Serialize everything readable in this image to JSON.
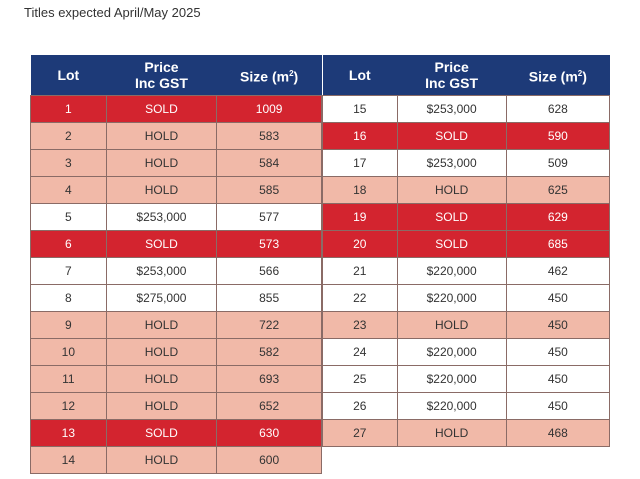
{
  "subtitle": "Titles expected April/May 2025",
  "headers": {
    "lot": "Lot",
    "price_line1": "Price",
    "price_line2": "Inc GST",
    "size": "Size (m",
    "size_sup": "2",
    "size_end": ")"
  },
  "colors": {
    "header": "#1d3a78",
    "sold": "#d3242f",
    "hold": "#f1b9a8",
    "available": "#ffffff"
  },
  "left_rows": [
    {
      "lot": "1",
      "price": "SOLD",
      "size": "1009",
      "status": "sold"
    },
    {
      "lot": "2",
      "price": "HOLD",
      "size": "583",
      "status": "hold"
    },
    {
      "lot": "3",
      "price": "HOLD",
      "size": "584",
      "status": "hold"
    },
    {
      "lot": "4",
      "price": "HOLD",
      "size": "585",
      "status": "hold"
    },
    {
      "lot": "5",
      "price": "$253,000",
      "size": "577",
      "status": "avail"
    },
    {
      "lot": "6",
      "price": "SOLD",
      "size": "573",
      "status": "sold"
    },
    {
      "lot": "7",
      "price": "$253,000",
      "size": "566",
      "status": "avail"
    },
    {
      "lot": "8",
      "price": "$275,000",
      "size": "855",
      "status": "avail"
    },
    {
      "lot": "9",
      "price": "HOLD",
      "size": "722",
      "status": "hold"
    },
    {
      "lot": "10",
      "price": "HOLD",
      "size": "582",
      "status": "hold"
    },
    {
      "lot": "11",
      "price": "HOLD",
      "size": "693",
      "status": "hold"
    },
    {
      "lot": "12",
      "price": "HOLD",
      "size": "652",
      "status": "hold"
    },
    {
      "lot": "13",
      "price": "SOLD",
      "size": "630",
      "status": "sold"
    },
    {
      "lot": "14",
      "price": "HOLD",
      "size": "600",
      "status": "hold"
    }
  ],
  "right_rows": [
    {
      "lot": "15",
      "price": "$253,000",
      "size": "628",
      "status": "avail"
    },
    {
      "lot": "16",
      "price": "SOLD",
      "size": "590",
      "status": "sold"
    },
    {
      "lot": "17",
      "price": "$253,000",
      "size": "509",
      "status": "avail"
    },
    {
      "lot": "18",
      "price": "HOLD",
      "size": "625",
      "status": "hold"
    },
    {
      "lot": "19",
      "price": "SOLD",
      "size": "629",
      "status": "sold"
    },
    {
      "lot": "20",
      "price": "SOLD",
      "size": "685",
      "status": "sold"
    },
    {
      "lot": "21",
      "price": "$220,000",
      "size": "462",
      "status": "avail"
    },
    {
      "lot": "22",
      "price": "$220,000",
      "size": "450",
      "status": "avail"
    },
    {
      "lot": "23",
      "price": "HOLD",
      "size": "450",
      "status": "hold"
    },
    {
      "lot": "24",
      "price": "$220,000",
      "size": "450",
      "status": "avail"
    },
    {
      "lot": "25",
      "price": "$220,000",
      "size": "450",
      "status": "avail"
    },
    {
      "lot": "26",
      "price": "$220,000",
      "size": "450",
      "status": "avail"
    },
    {
      "lot": "27",
      "price": "HOLD",
      "size": "468",
      "status": "hold"
    }
  ]
}
